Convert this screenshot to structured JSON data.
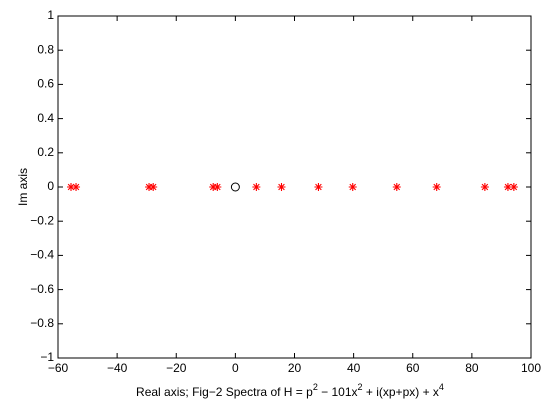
{
  "chart_data": {
    "type": "scatter",
    "xlabel": [
      "Real axis; Fig−2 Spectra of H = p",
      "2",
      " − 101x",
      "2",
      " + i(xp+px) + x",
      "4"
    ],
    "ylabel": "Im axis",
    "xlim": [
      -60,
      100
    ],
    "ylim": [
      -1,
      1
    ],
    "xticks": [
      {
        "value": -60,
        "label": "−60"
      },
      {
        "value": -40,
        "label": "−40"
      },
      {
        "value": -20,
        "label": "−20"
      },
      0,
      20,
      40,
      60,
      80,
      100
    ],
    "yticks": [
      {
        "value": -1,
        "label": "−1"
      },
      {
        "value": -0.8,
        "label": "−0.8"
      },
      {
        "value": -0.6,
        "label": "−0.6"
      },
      {
        "value": -0.4,
        "label": "−0.4"
      },
      {
        "value": -0.2,
        "label": "−0.2"
      },
      0,
      0.2,
      0.4,
      0.6,
      0.8,
      1
    ],
    "box": true,
    "series": [
      {
        "color": "#ff0000",
        "marker": "asterisk",
        "x": [
          -55.6,
          -53.9,
          -29.2,
          -27.8,
          -7.5,
          -6.1,
          7.1,
          15.6,
          28.1,
          39.7,
          54.6,
          68.1,
          84.4,
          92.2,
          94.2
        ],
        "values": [
          0,
          0,
          0,
          0,
          0,
          0,
          0,
          0,
          0,
          0,
          0,
          0,
          0,
          0,
          0
        ]
      },
      {
        "color": "#000000",
        "marker": "circle",
        "x": [
          0
        ],
        "values": [
          0
        ]
      }
    ]
  }
}
